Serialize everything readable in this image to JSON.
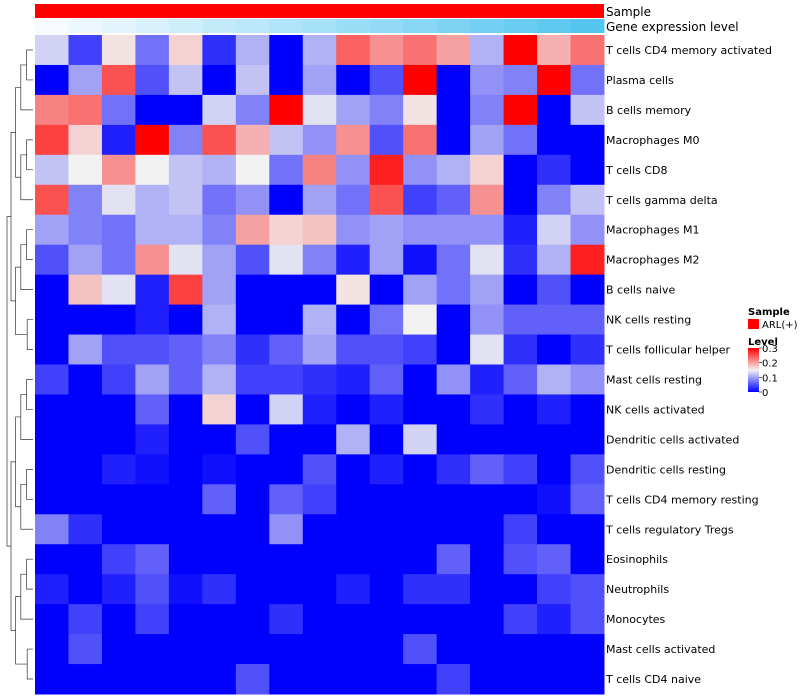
{
  "chart_data": {
    "type": "heatmap",
    "annotations": {
      "sample_label": "Sample",
      "sample_color": "#ff0000",
      "gene_label": "Gene expression level",
      "gene_colors": [
        "#f7fbff",
        "#55c6ef"
      ]
    },
    "rows": [
      "T cells CD4 memory activated",
      "Plasma cells",
      "B cells memory",
      "Macrophages M0",
      "T cells CD8",
      "T cells gamma delta",
      "Macrophages M1",
      "Macrophages M2",
      "B cells naive",
      "NK cells resting",
      "T cells follicular helper",
      "Mast cells resting",
      "NK cells activated",
      "Dendritic cells activated",
      "Dendritic cells resting",
      "T cells CD4 memory resting",
      "T cells regulatory  Tregs",
      "Eosinophils",
      "Neutrophils",
      "Monocytes",
      "Mast cells activated",
      "T cells CD4 naive"
    ],
    "values": [
      [
        0.13,
        0.04,
        0.16,
        0.07,
        0.17,
        0.03,
        0.11,
        0.0,
        0.11,
        0.24,
        0.21,
        0.23,
        0.2,
        0.11,
        0.3,
        0.19,
        0.23
      ],
      [
        0.0,
        0.1,
        0.25,
        0.05,
        0.12,
        0.0,
        0.12,
        0.0,
        0.1,
        0.0,
        0.05,
        0.3,
        0.0,
        0.09,
        0.08,
        0.3,
        0.07
      ],
      [
        0.22,
        0.23,
        0.07,
        0.0,
        0.0,
        0.13,
        0.08,
        0.3,
        0.14,
        0.1,
        0.08,
        0.16,
        0.0,
        0.08,
        0.3,
        0.0,
        0.12
      ],
      [
        0.26,
        0.17,
        0.02,
        0.3,
        0.08,
        0.25,
        0.19,
        0.12,
        0.09,
        0.21,
        0.05,
        0.23,
        0.0,
        0.1,
        0.07,
        0.0,
        0.0
      ],
      [
        0.12,
        0.15,
        0.21,
        0.15,
        0.12,
        0.11,
        0.15,
        0.07,
        0.22,
        0.09,
        0.28,
        0.09,
        0.11,
        0.17,
        0.0,
        0.03,
        0.0
      ],
      [
        0.25,
        0.08,
        0.14,
        0.11,
        0.12,
        0.07,
        0.09,
        0.0,
        0.1,
        0.07,
        0.25,
        0.04,
        0.06,
        0.21,
        0.0,
        0.08,
        0.12
      ],
      [
        0.1,
        0.08,
        0.07,
        0.11,
        0.11,
        0.08,
        0.2,
        0.17,
        0.18,
        0.09,
        0.1,
        0.09,
        0.09,
        0.09,
        0.02,
        0.13,
        0.09
      ],
      [
        0.05,
        0.1,
        0.07,
        0.21,
        0.14,
        0.1,
        0.05,
        0.14,
        0.08,
        0.02,
        0.1,
        0.01,
        0.07,
        0.14,
        0.03,
        0.11,
        0.28
      ],
      [
        0.0,
        0.18,
        0.14,
        0.02,
        0.26,
        0.1,
        0.0,
        0.0,
        0.0,
        0.16,
        0.0,
        0.1,
        0.07,
        0.1,
        0.0,
        0.05,
        0.0
      ],
      [
        0.0,
        0.0,
        0.0,
        0.02,
        0.0,
        0.11,
        0.0,
        0.0,
        0.11,
        0.0,
        0.07,
        0.15,
        0.0,
        0.09,
        0.06,
        0.06,
        0.06
      ],
      [
        0.0,
        0.1,
        0.05,
        0.05,
        0.06,
        0.08,
        0.03,
        0.06,
        0.1,
        0.05,
        0.05,
        0.04,
        0.0,
        0.14,
        0.03,
        0.0,
        0.03
      ],
      [
        0.04,
        0.0,
        0.04,
        0.1,
        0.06,
        0.11,
        0.04,
        0.04,
        0.03,
        0.02,
        0.06,
        0.0,
        0.09,
        0.02,
        0.06,
        0.11,
        0.09
      ],
      [
        0.0,
        0.0,
        0.0,
        0.06,
        0.0,
        0.17,
        0.0,
        0.13,
        0.02,
        0.0,
        0.02,
        0.0,
        0.0,
        0.03,
        0.0,
        0.02,
        0.0
      ],
      [
        0.0,
        0.0,
        0.0,
        0.02,
        0.0,
        0.0,
        0.05,
        0.0,
        0.0,
        0.11,
        0.0,
        0.13,
        0.0,
        0.0,
        0.0,
        0.0,
        0.0
      ],
      [
        0.0,
        0.0,
        0.02,
        0.01,
        0.0,
        0.01,
        0.0,
        0.0,
        0.05,
        0.0,
        0.02,
        0.0,
        0.03,
        0.06,
        0.04,
        0.0,
        0.05
      ],
      [
        0.0,
        0.0,
        0.0,
        0.0,
        0.0,
        0.06,
        0.0,
        0.06,
        0.04,
        0.0,
        0.0,
        0.0,
        0.0,
        0.0,
        0.0,
        0.01,
        0.06
      ],
      [
        0.08,
        0.03,
        0.0,
        0.0,
        0.0,
        0.0,
        0.0,
        0.09,
        0.0,
        0.0,
        0.0,
        0.0,
        0.0,
        0.0,
        0.04,
        0.0,
        0.0
      ],
      [
        0.0,
        0.0,
        0.04,
        0.06,
        0.0,
        0.0,
        0.0,
        0.0,
        0.0,
        0.0,
        0.0,
        0.0,
        0.06,
        0.0,
        0.05,
        0.06,
        0.0
      ],
      [
        0.02,
        0.0,
        0.02,
        0.05,
        0.01,
        0.03,
        0.0,
        0.0,
        0.0,
        0.02,
        0.0,
        0.03,
        0.03,
        0.0,
        0.0,
        0.04,
        0.05
      ],
      [
        0.0,
        0.04,
        0.0,
        0.04,
        0.0,
        0.0,
        0.0,
        0.03,
        0.0,
        0.0,
        0.0,
        0.0,
        0.0,
        0.0,
        0.04,
        0.02,
        0.05
      ],
      [
        0.0,
        0.05,
        0.0,
        0.0,
        0.0,
        0.0,
        0.0,
        0.0,
        0.0,
        0.0,
        0.0,
        0.05,
        0.0,
        0.0,
        0.0,
        0.0,
        0.0
      ],
      [
        0.0,
        0.0,
        0.0,
        0.0,
        0.0,
        0.0,
        0.05,
        0.0,
        0.0,
        0.0,
        0.0,
        0.0,
        0.04,
        0.0,
        0.0,
        0.0,
        0.0
      ]
    ],
    "color_scale": {
      "min": 0,
      "mid": 0.15,
      "max": 0.3,
      "low_color": "#0000ff",
      "mid_color": "#f2f2f2",
      "high_color": "#ff0000"
    },
    "legend": {
      "sample_title": "Sample",
      "sample_entry": "ARL(+)",
      "level_title": "Level",
      "level_ticks": [
        "0.3",
        "0.2",
        "0.1",
        "0"
      ]
    }
  }
}
